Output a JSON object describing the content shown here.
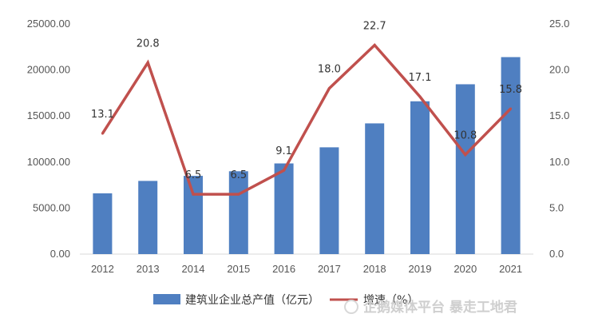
{
  "chart_data": {
    "type": "bar",
    "categories": [
      "2012",
      "2013",
      "2014",
      "2015",
      "2016",
      "2017",
      "2018",
      "2019",
      "2020",
      "2021"
    ],
    "series": [
      {
        "name": "建筑业企业总产值（亿元）",
        "type": "bar",
        "axis": "left",
        "color": "#4f7fc1",
        "values": [
          6600,
          7950,
          8500,
          9000,
          9850,
          11600,
          14200,
          16600,
          18450,
          21400
        ]
      },
      {
        "name": "增速（%）",
        "type": "line",
        "axis": "right",
        "color": "#c0504d",
        "values": [
          13.1,
          20.8,
          6.5,
          6.5,
          9.1,
          18.0,
          22.7,
          17.1,
          10.8,
          15.8
        ],
        "labels": [
          "13.1",
          "20.8",
          "6.5",
          "6.5",
          "9.1",
          "18.0",
          "22.7",
          "17.1",
          "10.8",
          "15.8"
        ]
      }
    ],
    "y_left": {
      "min": 0,
      "max": 25000,
      "ticks": [
        "0.00",
        "5000.00",
        "10000.00",
        "15000.00",
        "20000.00",
        "25000.00"
      ]
    },
    "y_right": {
      "min": 0,
      "max": 25,
      "ticks": [
        "0.0",
        "5.0",
        "10.0",
        "15.0",
        "20.0",
        "25.0"
      ]
    },
    "grid": false,
    "legend_position": "bottom",
    "watermark": "企鹅媒体平台 暴走工地君"
  }
}
